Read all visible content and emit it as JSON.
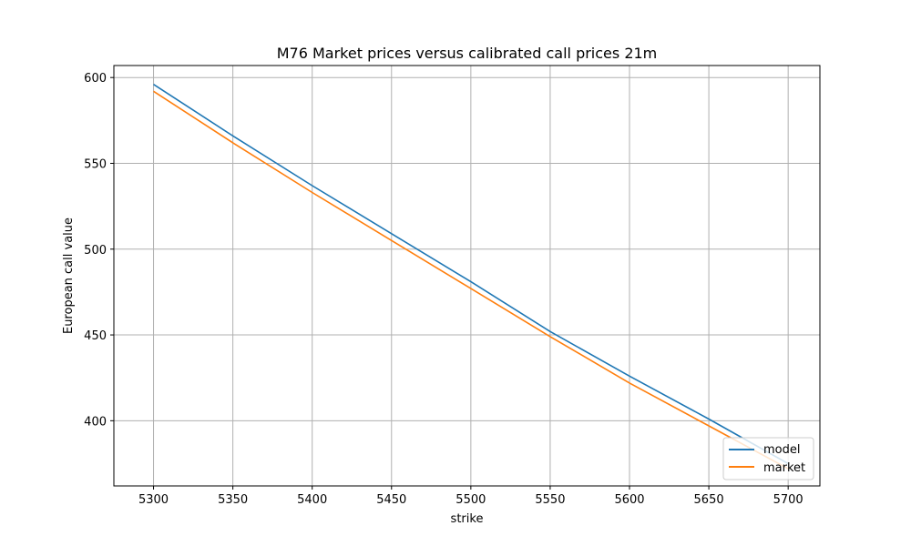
{
  "chart_data": {
    "type": "line",
    "title": "M76 Market prices versus calibrated call prices 21m",
    "xlabel": "strike",
    "ylabel": "European call value",
    "xlim": [
      5275,
      5720
    ],
    "ylim": [
      362,
      607
    ],
    "xticks": [
      5300,
      5350,
      5400,
      5450,
      5500,
      5550,
      5600,
      5650,
      5700
    ],
    "yticks": [
      400,
      450,
      500,
      550,
      600
    ],
    "grid": true,
    "legend_position": "lower-right",
    "series": [
      {
        "name": "model",
        "color": "#1f77b4",
        "x": [
          5300,
          5350,
          5400,
          5450,
          5500,
          5550,
          5600,
          5650,
          5700
        ],
        "y": [
          596,
          566,
          537,
          509,
          481,
          452,
          426,
          401,
          375
        ]
      },
      {
        "name": "market",
        "color": "#ff7f0e",
        "x": [
          5300,
          5350,
          5400,
          5450,
          5500,
          5550,
          5600,
          5650,
          5700
        ],
        "y": [
          592,
          562,
          533,
          505,
          477,
          449,
          422,
          397,
          372
        ]
      }
    ]
  }
}
